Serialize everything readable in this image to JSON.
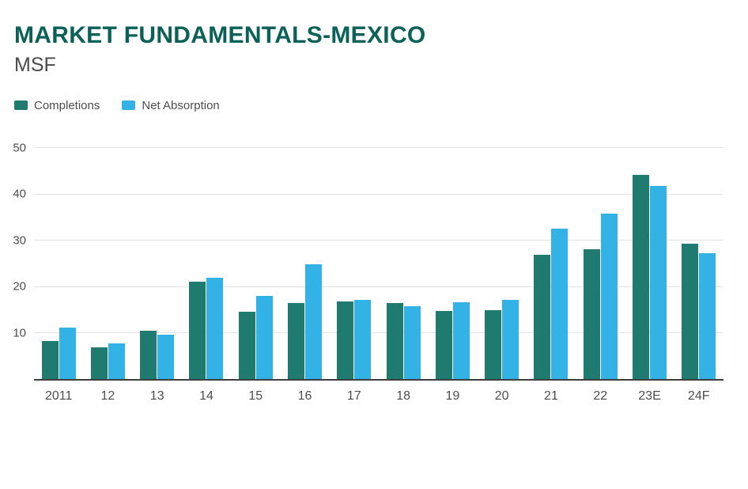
{
  "header": {
    "title": "MARKET FUNDAMENTALS-MEXICO",
    "subtitle": "MSF"
  },
  "colors": {
    "title": "#0a6158",
    "completions": "#1f7a70",
    "net_absorption": "#33b3e5",
    "gridline": "#e2e2e2",
    "axis_baseline": "#3f3f3f",
    "tick_text": "#4d4d4d"
  },
  "chart_data": {
    "type": "bar",
    "title": "MARKET FUNDAMENTALS-MEXICO",
    "subtitle": "MSF",
    "xlabel": "",
    "ylabel": "MSF",
    "ylim": [
      0,
      50
    ],
    "yticks": [
      10,
      20,
      30,
      40,
      50
    ],
    "grid": true,
    "legend_position": "top-left",
    "categories": [
      "2011",
      "12",
      "13",
      "14",
      "15",
      "16",
      "17",
      "18",
      "19",
      "20",
      "21",
      "22",
      "23E",
      "24F"
    ],
    "series": [
      {
        "name": "Completions",
        "color": "#1f7a70",
        "values": [
          8.2,
          6.9,
          10.4,
          21.0,
          14.5,
          16.4,
          16.8,
          16.4,
          14.7,
          14.9,
          26.8,
          28.0,
          44.0,
          29.1
        ]
      },
      {
        "name": "Net Absorption",
        "color": "#33b3e5",
        "values": [
          11.1,
          7.6,
          9.5,
          21.8,
          18.0,
          24.7,
          17.1,
          15.7,
          16.6,
          17.1,
          32.4,
          35.6,
          41.7,
          27.2
        ]
      }
    ]
  }
}
